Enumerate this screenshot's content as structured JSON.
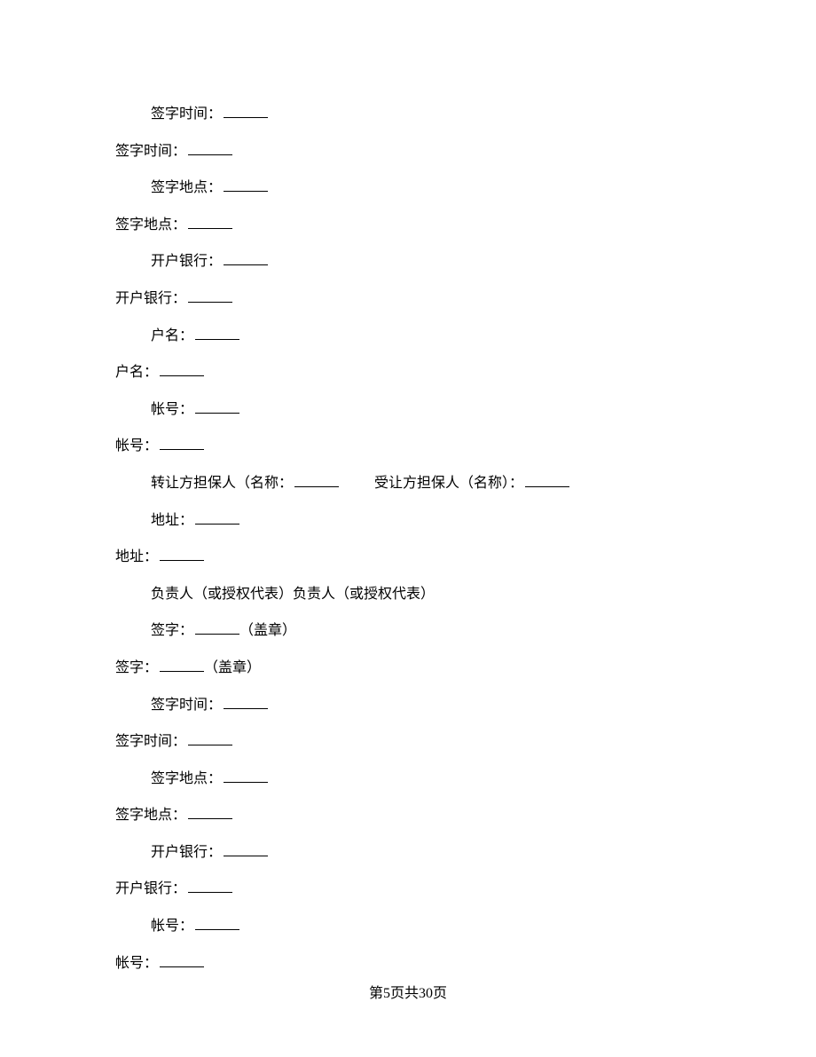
{
  "lines": [
    {
      "indent": true,
      "segments": [
        {
          "text": "签字时间："
        },
        {
          "blank": true
        }
      ]
    },
    {
      "indent": false,
      "segments": [
        {
          "text": "签字时间："
        },
        {
          "blank": true
        }
      ]
    },
    {
      "indent": true,
      "segments": [
        {
          "text": "签字地点："
        },
        {
          "blank": true
        }
      ]
    },
    {
      "indent": false,
      "segments": [
        {
          "text": "签字地点："
        },
        {
          "blank": true
        }
      ]
    },
    {
      "indent": true,
      "segments": [
        {
          "text": "开户银行："
        },
        {
          "blank": true
        }
      ]
    },
    {
      "indent": false,
      "segments": [
        {
          "text": "开户银行："
        },
        {
          "blank": true
        }
      ]
    },
    {
      "indent": true,
      "segments": [
        {
          "text": "户名："
        },
        {
          "blank": true
        }
      ]
    },
    {
      "indent": false,
      "segments": [
        {
          "text": "户名："
        },
        {
          "blank": true
        }
      ]
    },
    {
      "indent": true,
      "segments": [
        {
          "text": "帐号："
        },
        {
          "blank": true
        }
      ]
    },
    {
      "indent": false,
      "segments": [
        {
          "text": "帐号："
        },
        {
          "blank": true
        }
      ]
    },
    {
      "indent": true,
      "segments": [
        {
          "text": "转让方担保人（名称："
        },
        {
          "blank": true
        },
        {
          "gap": true
        },
        {
          "text": "受让方担保人（名称）："
        },
        {
          "blank": true
        }
      ]
    },
    {
      "indent": true,
      "segments": [
        {
          "text": "地址："
        },
        {
          "blank": true
        }
      ]
    },
    {
      "indent": false,
      "segments": [
        {
          "text": "地址："
        },
        {
          "blank": true
        }
      ]
    },
    {
      "indent": true,
      "segments": [
        {
          "text": "负责人（或授权代表）负责人（或授权代表）"
        }
      ]
    },
    {
      "indent": true,
      "segments": [
        {
          "text": "签字："
        },
        {
          "blank": true
        },
        {
          "text": "（盖章）"
        }
      ]
    },
    {
      "indent": false,
      "segments": [
        {
          "text": "签字："
        },
        {
          "blank": true
        },
        {
          "text": "（盖章）"
        }
      ]
    },
    {
      "indent": true,
      "segments": [
        {
          "text": "签字时间："
        },
        {
          "blank": true
        }
      ]
    },
    {
      "indent": false,
      "segments": [
        {
          "text": "签字时间："
        },
        {
          "blank": true
        }
      ]
    },
    {
      "indent": true,
      "segments": [
        {
          "text": "签字地点："
        },
        {
          "blank": true
        }
      ]
    },
    {
      "indent": false,
      "segments": [
        {
          "text": "签字地点："
        },
        {
          "blank": true
        }
      ]
    },
    {
      "indent": true,
      "segments": [
        {
          "text": "开户银行："
        },
        {
          "blank": true
        }
      ]
    },
    {
      "indent": false,
      "segments": [
        {
          "text": "开户银行："
        },
        {
          "blank": true
        }
      ]
    },
    {
      "indent": true,
      "segments": [
        {
          "text": "帐号："
        },
        {
          "blank": true
        }
      ]
    },
    {
      "indent": false,
      "segments": [
        {
          "text": "帐号："
        },
        {
          "blank": true
        }
      ]
    }
  ],
  "footer": "第5页共30页"
}
